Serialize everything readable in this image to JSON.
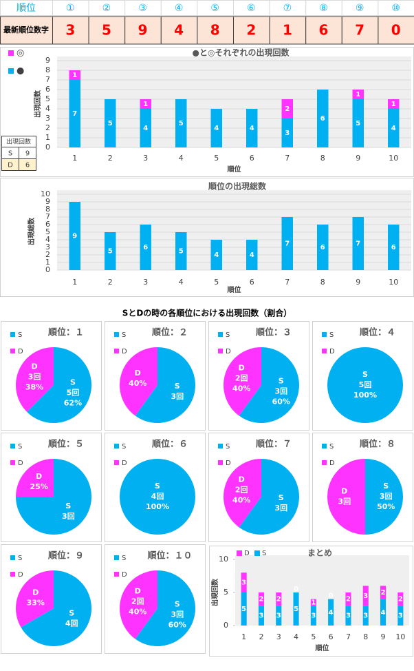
{
  "top_table": {
    "header": [
      "順位",
      "①",
      "②",
      "③",
      "④",
      "⑤",
      "⑥",
      "⑦",
      "⑧",
      "⑨",
      "⑩"
    ],
    "label": "最新順位数字",
    "digits": [
      3,
      5,
      9,
      4,
      8,
      2,
      1,
      6,
      7,
      0
    ]
  },
  "side_table": {
    "header": "出現回数",
    "rows": [
      [
        "S",
        9
      ],
      [
        "D",
        6
      ]
    ]
  },
  "section_title": "SとDの時の各順位における出現回数（割合）",
  "chart_data": [
    {
      "type": "bar",
      "title": "●と◎それぞれの出現回数",
      "x_label": "順位",
      "y_label": "出現回数",
      "categories": [
        "1",
        "2",
        "3",
        "4",
        "5",
        "6",
        "7",
        "8",
        "9",
        "10"
      ],
      "series": [
        {
          "name": "●",
          "color": "#00b0f0",
          "values": [
            7,
            5,
            4,
            5,
            4,
            4,
            3,
            6,
            5,
            4
          ]
        },
        {
          "name": "◎",
          "color": "#ff33ff",
          "values": [
            1,
            0,
            1,
            0,
            0,
            0,
            2,
            0,
            1,
            1
          ]
        }
      ],
      "ylim": [
        0,
        9
      ],
      "yticks": [
        0,
        1,
        2,
        3,
        4,
        5,
        6,
        7,
        8,
        9
      ],
      "grid": true,
      "legend": "left"
    },
    {
      "type": "bar",
      "title": "順位の出現総数",
      "x_label": "順位",
      "y_label": "出現総数",
      "categories": [
        "1",
        "2",
        "3",
        "4",
        "5",
        "6",
        "7",
        "8",
        "9",
        "10"
      ],
      "series": [
        {
          "color": "#00b0f0",
          "values": [
            9,
            5,
            6,
            5,
            4,
            4,
            7,
            6,
            7,
            6
          ]
        }
      ],
      "ylim": [
        0,
        10
      ],
      "yticks": [
        0,
        1,
        2,
        3,
        4,
        5,
        6,
        7,
        8,
        9,
        10
      ],
      "grid": true
    },
    {
      "type": "pie",
      "title": "順位：１",
      "categories": [
        "S",
        "D"
      ],
      "colors": [
        "#00b0f0",
        "#ff33ff"
      ],
      "values": [
        5,
        3
      ],
      "value_labels": [
        "5回",
        "3回"
      ],
      "percent_labels": [
        "62%",
        "38%"
      ]
    },
    {
      "type": "pie",
      "title": "順位：２",
      "categories": [
        "S",
        "D"
      ],
      "colors": [
        "#00b0f0",
        "#ff33ff"
      ],
      "values": [
        3,
        2
      ],
      "value_labels": [
        "3回",
        null
      ],
      "percent_labels": [
        null,
        "40%"
      ]
    },
    {
      "type": "pie",
      "title": "順位：３",
      "categories": [
        "S",
        "D"
      ],
      "colors": [
        "#00b0f0",
        "#ff33ff"
      ],
      "values": [
        3,
        2
      ],
      "value_labels": [
        "3回",
        "2回"
      ],
      "percent_labels": [
        "60%",
        "40%"
      ]
    },
    {
      "type": "pie",
      "title": "順位：４",
      "categories": [
        "S",
        "D"
      ],
      "colors": [
        "#00b0f0",
        "#ff33ff"
      ],
      "values": [
        5,
        0
      ],
      "value_labels": [
        "5回",
        null
      ],
      "percent_labels": [
        "100%",
        null
      ]
    },
    {
      "type": "pie",
      "title": "順位：５",
      "categories": [
        "S",
        "D"
      ],
      "colors": [
        "#00b0f0",
        "#ff33ff"
      ],
      "values": [
        3,
        1
      ],
      "value_labels": [
        "3回",
        null
      ],
      "percent_labels": [
        null,
        "25%"
      ]
    },
    {
      "type": "pie",
      "title": "順位：６",
      "categories": [
        "S",
        "D"
      ],
      "colors": [
        "#00b0f0",
        "#ff33ff"
      ],
      "values": [
        4,
        0
      ],
      "value_labels": [
        "4回",
        null
      ],
      "percent_labels": [
        "100%",
        null
      ]
    },
    {
      "type": "pie",
      "title": "順位：７",
      "categories": [
        "S",
        "D"
      ],
      "colors": [
        "#00b0f0",
        "#ff33ff"
      ],
      "values": [
        3,
        2
      ],
      "value_labels": [
        "3回",
        "2回"
      ],
      "percent_labels": [
        null,
        "40%"
      ]
    },
    {
      "type": "pie",
      "title": "順位：８",
      "categories": [
        "S",
        "D"
      ],
      "colors": [
        "#00b0f0",
        "#ff33ff"
      ],
      "values": [
        3,
        3
      ],
      "value_labels": [
        "3回",
        "3回"
      ],
      "percent_labels": [
        "50%",
        null
      ]
    },
    {
      "type": "pie",
      "title": "順位：９",
      "categories": [
        "S",
        "D"
      ],
      "colors": [
        "#00b0f0",
        "#ff33ff"
      ],
      "values": [
        4,
        2
      ],
      "value_labels": [
        "4回",
        null
      ],
      "percent_labels": [
        null,
        "33%"
      ]
    },
    {
      "type": "pie",
      "title": "順位：１０",
      "categories": [
        "S",
        "D"
      ],
      "colors": [
        "#00b0f0",
        "#ff33ff"
      ],
      "values": [
        3,
        2
      ],
      "value_labels": [
        "3回",
        "2回"
      ],
      "percent_labels": [
        "60%",
        "40%"
      ]
    },
    {
      "type": "bar",
      "title": "まとめ",
      "x_label": "順位",
      "y_label": "出現回数",
      "categories": [
        "1",
        "2",
        "3",
        "4",
        "5",
        "6",
        "7",
        "8",
        "9",
        "10"
      ],
      "series": [
        {
          "name": "S",
          "color": "#00b0f0",
          "values": [
            5,
            3,
            3,
            5,
            3,
            4,
            3,
            3,
            4,
            3
          ]
        },
        {
          "name": "D",
          "color": "#ff33ff",
          "values": [
            3,
            2,
            2,
            0,
            1,
            0,
            2,
            3,
            2,
            2
          ]
        }
      ],
      "ylim": [
        0,
        10
      ],
      "yticks": [
        0,
        5,
        10
      ],
      "grid": false,
      "legend": "top",
      "zero_labels": true
    }
  ]
}
